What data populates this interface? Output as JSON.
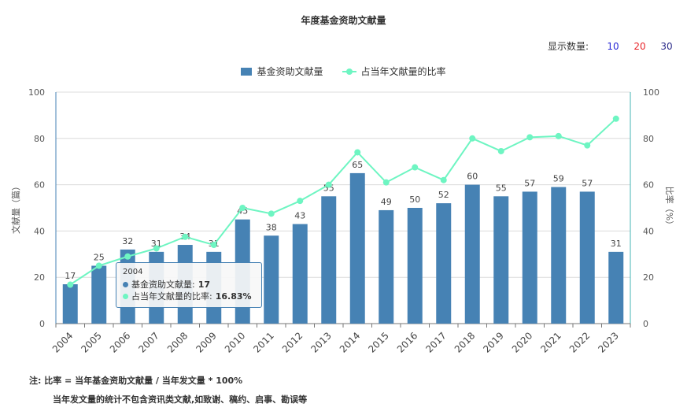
{
  "title": "年度基金资助文献量",
  "display_count": {
    "label": "显示数量:",
    "options": [
      {
        "label": "10",
        "color": "#2b2bd6"
      },
      {
        "label": "20",
        "color": "#e8262b"
      },
      {
        "label": "30",
        "color": "#2b2b8a"
      }
    ]
  },
  "legend": [
    {
      "label": "基金资助文献量",
      "color": "#4682b4",
      "kind": "bar"
    },
    {
      "label": "占当年文献量的比率",
      "color": "#6ef5c2",
      "kind": "line"
    }
  ],
  "chart_data": {
    "type": "bar",
    "categories": [
      "2004",
      "2005",
      "2006",
      "2007",
      "2008",
      "2009",
      "2010",
      "2011",
      "2012",
      "2013",
      "2014",
      "2015",
      "2016",
      "2017",
      "2018",
      "2019",
      "2020",
      "2021",
      "2022",
      "2023"
    ],
    "series": [
      {
        "name": "基金资助文献量",
        "type": "bar",
        "axis": "left",
        "color": "#4682b4",
        "values": [
          17,
          25,
          32,
          31,
          34,
          31,
          45,
          38,
          43,
          55,
          65,
          49,
          50,
          52,
          60,
          55,
          57,
          59,
          57,
          31
        ]
      },
      {
        "name": "占当年文献量的比率",
        "type": "line",
        "axis": "right",
        "color": "#6ef5c2",
        "values": [
          16.83,
          25,
          29,
          32.5,
          37.5,
          34,
          50,
          47.5,
          53,
          60,
          74,
          61,
          67.5,
          62,
          80,
          74.5,
          80.5,
          81,
          77,
          88.5
        ]
      }
    ],
    "ylabel": "文献量（篇）",
    "y2label": "比率（%）",
    "ylim": [
      0,
      100
    ],
    "y2lim": [
      0,
      100
    ],
    "yticks": [
      0,
      20,
      40,
      60,
      80,
      100
    ],
    "grid": true,
    "legend_position": "top-center"
  },
  "tooltip": {
    "year": "2004",
    "rows": [
      {
        "label": "基金资助文献量: ",
        "value": "17",
        "color": "#4682b4"
      },
      {
        "label": "占当年文献量的比率: ",
        "value": "16.83%",
        "color": "#6ef5c2"
      }
    ]
  },
  "notes": {
    "line1": "注:   比率 = 当年基金资助文献量 / 当年发文量 * 100%",
    "line2": "当年发文量的统计不包含资讯类文献,如致谢、稿约、启事、勘误等"
  }
}
